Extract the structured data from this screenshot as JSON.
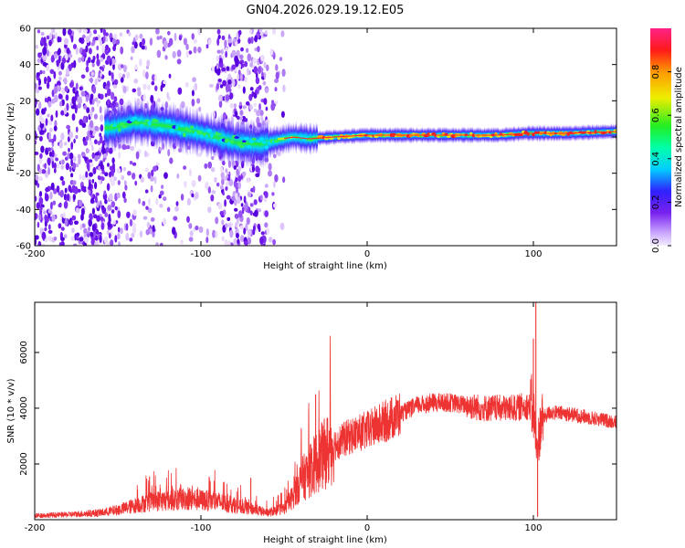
{
  "title": "GN04.2026.029.19.12.E05",
  "colors": {
    "snr_line": "#ee3333",
    "axis": "#000000",
    "background": "#ffffff"
  },
  "chart_data": [
    {
      "type": "heatmap",
      "name": "spectrogram",
      "xlabel": "Height of straight line (km)",
      "ylabel": "Frequency (Hz)",
      "xlim": [
        -200,
        150
      ],
      "ylim": [
        -60,
        60
      ],
      "xticks": [
        -200,
        -100,
        0,
        100
      ],
      "yticks": [
        -60,
        -40,
        -20,
        0,
        20,
        40,
        60
      ],
      "ridge": {
        "description": "Signal ridge (frequency centre in Hz) vs height",
        "x": [
          -155,
          -140,
          -120,
          -100,
          -80,
          -65,
          -55,
          -45,
          -35,
          -20,
          0,
          20,
          50,
          80,
          95,
          100,
          120,
          150
        ],
        "y": [
          5,
          8,
          6,
          2,
          -3,
          -4,
          -2,
          0,
          -1,
          0,
          1,
          1,
          1,
          1,
          2,
          2,
          2,
          3
        ]
      },
      "colorbar": {
        "label": "Normalized spectral amplitude",
        "ticks": [
          0.0,
          0.2,
          0.4,
          0.6,
          0.8
        ],
        "range": [
          0,
          1
        ],
        "colormap": "hsv-like (violet → blue → cyan → green → yellow → red → magenta)"
      }
    },
    {
      "type": "line",
      "name": "snr",
      "xlabel": "Height of straight line (km)",
      "ylabel": "SNR (10 * v/v)",
      "xlim": [
        -200,
        150
      ],
      "ylim": [
        0,
        7800
      ],
      "xticks": [
        -200,
        -100,
        0,
        100
      ],
      "yticks": [
        2000,
        4000,
        6000
      ],
      "series": [
        {
          "name": "SNR",
          "x": [
            -200,
            -180,
            -160,
            -150,
            -140,
            -130,
            -120,
            -110,
            -100,
            -90,
            -80,
            -70,
            -60,
            -50,
            -45,
            -40,
            -35,
            -30,
            -20,
            -10,
            0,
            10,
            20,
            30,
            40,
            50,
            60,
            70,
            80,
            90,
            95,
            100,
            102,
            105,
            110,
            120,
            130,
            140,
            150
          ],
          "values": [
            150,
            180,
            250,
            350,
            500,
            650,
            700,
            750,
            700,
            650,
            500,
            400,
            250,
            400,
            800,
            1400,
            1700,
            2100,
            2700,
            3000,
            3200,
            3500,
            3800,
            4100,
            4200,
            4200,
            4100,
            4000,
            4000,
            4000,
            4100,
            4000,
            2500,
            3600,
            3850,
            3800,
            3700,
            3600,
            3500
          ]
        }
      ],
      "spikes": [
        {
          "x": -31,
          "y": 4500
        },
        {
          "x": -70,
          "y": 1500
        },
        {
          "x": 100,
          "y": 6500
        },
        {
          "x": 101.5,
          "y": 7800
        },
        {
          "x": 102.5,
          "y": 100
        }
      ]
    }
  ]
}
